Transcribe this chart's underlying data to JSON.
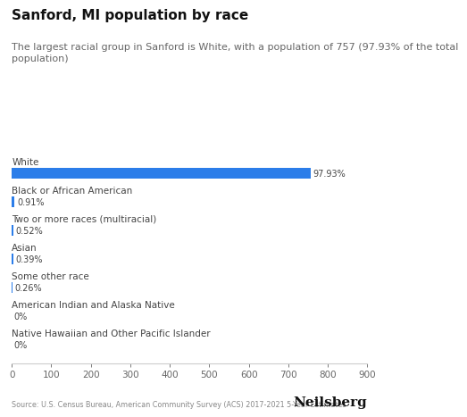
{
  "title": "Sanford, MI population by race",
  "subtitle": "The largest racial group in Sanford is White, with a population of 757 (97.93% of the total\npopulation)",
  "categories": [
    "White",
    "Black or African American",
    "Two or more races (multiracial)",
    "Asian",
    "Some other race",
    "American Indian and Alaska Native",
    "Native Hawaiian and Other Pacific Islander"
  ],
  "values": [
    757,
    7.05,
    4.03,
    3.02,
    2.01,
    0,
    0
  ],
  "percentages": [
    "97.93%",
    "0.91%",
    "0.52%",
    "0.39%",
    "0.26%",
    "0%",
    "0%"
  ],
  "bar_color": "#2b7de9",
  "xlim": [
    0,
    900
  ],
  "xticks": [
    0,
    100,
    200,
    300,
    400,
    500,
    600,
    700,
    800,
    900
  ],
  "background_color": "#ffffff",
  "title_fontsize": 11,
  "subtitle_fontsize": 8,
  "label_fontsize": 7.5,
  "pct_fontsize": 7,
  "source_text": "Source: U.S. Census Bureau, American Community Survey (ACS) 2017-2021 5-Year Estimates",
  "brand_text": "Neilsberg",
  "tick_label_fontsize": 7.5
}
